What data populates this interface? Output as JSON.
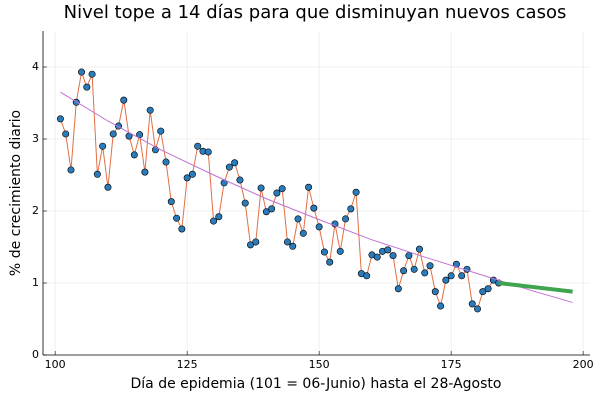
{
  "chart_data": {
    "type": "line",
    "title": "Nivel tope a 14 días para que disminuyan nuevos casos",
    "xlabel": "Día de epidemia (101 = 06-Junio) hasta el 28-Agosto",
    "ylabel": "% de crecimiento diario",
    "xlim": [
      97.7,
      201.3
    ],
    "ylim": [
      0,
      4.5
    ],
    "xticks": [
      100,
      125,
      150,
      175,
      200
    ],
    "yticks": [
      0,
      1,
      2,
      3,
      4
    ],
    "grid": true,
    "series": [
      {
        "color": "#e26f46",
        "marker_color": "#2b7bba",
        "width": 1,
        "x": [
          101,
          102,
          103,
          104,
          105,
          106,
          107,
          108,
          109,
          110,
          111,
          112,
          113,
          114,
          115,
          116,
          117,
          118,
          119,
          120,
          121,
          122,
          123,
          124,
          125,
          126,
          127,
          128,
          129,
          130,
          131,
          132,
          133,
          134,
          135,
          136,
          137,
          138,
          139,
          140,
          141,
          142,
          143,
          144,
          145,
          146,
          147,
          148,
          149,
          150,
          151,
          152,
          153,
          154,
          155,
          156,
          157,
          158,
          159,
          160,
          161,
          162,
          163,
          164,
          165,
          166,
          167,
          168,
          169,
          170,
          171,
          172,
          173,
          174,
          175,
          176,
          177,
          178,
          179,
          180,
          181,
          182,
          183,
          184
        ],
        "values": [
          3.28,
          3.07,
          2.57,
          3.51,
          3.93,
          3.72,
          3.9,
          2.51,
          2.9,
          2.33,
          3.07,
          3.18,
          3.54,
          3.04,
          2.78,
          3.06,
          2.54,
          3.4,
          2.85,
          3.11,
          2.68,
          2.13,
          1.9,
          1.75,
          2.46,
          2.51,
          2.9,
          2.83,
          2.82,
          1.86,
          1.92,
          2.39,
          2.61,
          2.67,
          2.43,
          2.11,
          1.53,
          1.57,
          2.32,
          1.99,
          2.03,
          2.25,
          2.31,
          1.57,
          1.51,
          1.89,
          1.69,
          2.33,
          2.04,
          1.78,
          1.43,
          1.29,
          1.82,
          1.44,
          1.89,
          2.03,
          2.26,
          1.13,
          1.1,
          1.39,
          1.36,
          1.44,
          1.46,
          1.38,
          0.92,
          1.17,
          1.38,
          1.19,
          1.47,
          1.14,
          1.24,
          0.88,
          0.68,
          1.04,
          1.1,
          1.26,
          1.1,
          1.19,
          0.71,
          0.64,
          0.88,
          0.92,
          1.04,
          1.0
        ]
      },
      {
        "color": "#c271d2",
        "width": 1,
        "x": [
          101,
          110,
          120,
          130,
          140,
          150,
          160,
          170,
          180,
          190,
          198
        ],
        "values": [
          3.65,
          3.25,
          2.85,
          2.5,
          2.17,
          1.88,
          1.6,
          1.36,
          1.13,
          0.9,
          0.73
        ]
      },
      {
        "color": "#3ea44e",
        "width": 4,
        "x": [
          184,
          191,
          198
        ],
        "values": [
          1.0,
          0.94,
          0.88
        ]
      }
    ]
  }
}
